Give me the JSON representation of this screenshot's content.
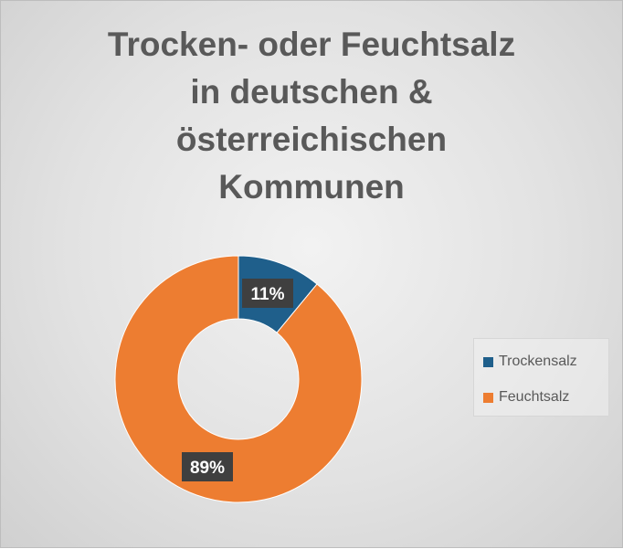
{
  "chart_data": {
    "type": "pie",
    "title_lines": [
      "Trocken- oder Feuchtsalz",
      "in deutschen &",
      "österreichischen",
      "Kommunen"
    ],
    "series": [
      {
        "name": "Trockensalz",
        "value": 11,
        "label": "11%",
        "color": "#1f5f8b"
      },
      {
        "name": "Feuchtsalz",
        "value": 89,
        "label": "89%",
        "color": "#ed7d31"
      }
    ],
    "donut": true,
    "legend_position": "right"
  }
}
